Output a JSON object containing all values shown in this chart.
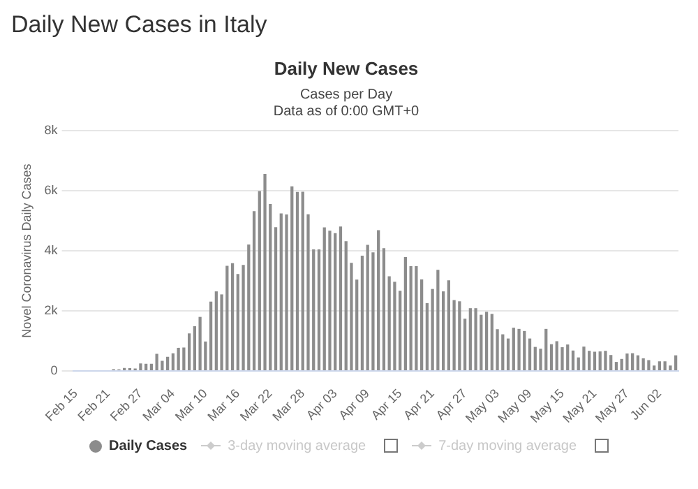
{
  "chart_data": {
    "type": "bar",
    "title": "Daily New Cases in Italy",
    "subtitle": "Daily New Cases",
    "ylabel": "Novel Coronavirus Daily Cases",
    "annotations": [
      "Cases per Day",
      "Data as of 0:00 GMT+0",
      "3-day moving average",
      "7-day moving average"
    ],
    "categories": [
      "Feb 15",
      null,
      null,
      null,
      null,
      null,
      "Feb 21",
      null,
      null,
      null,
      null,
      null,
      "Feb 27",
      null,
      null,
      null,
      null,
      null,
      "Mar 04",
      null,
      null,
      null,
      null,
      null,
      "Mar 10",
      null,
      null,
      null,
      null,
      null,
      "Mar 16",
      null,
      null,
      null,
      null,
      null,
      "Mar 22",
      null,
      null,
      null,
      null,
      null,
      "Mar 28",
      null,
      null,
      null,
      null,
      null,
      "Apr 03",
      null,
      null,
      null,
      null,
      null,
      "Apr 09",
      null,
      null,
      null,
      null,
      null,
      "Apr 15",
      null,
      null,
      null,
      null,
      null,
      "Apr 21",
      null,
      null,
      null,
      null,
      null,
      "Apr 27",
      null,
      null,
      null,
      null,
      null,
      "May 03",
      null,
      null,
      null,
      null,
      null,
      "May 09",
      null,
      null,
      null,
      null,
      null,
      "May 15",
      null,
      null,
      null,
      null,
      null,
      "May 21",
      null,
      null,
      null,
      null,
      null,
      "May 27",
      null,
      null,
      null,
      null,
      null,
      "Jun 02",
      null,
      null,
      null
    ],
    "series": [
      {
        "name": "Daily Cases",
        "color": "#8c8c8c",
        "values": [
          0,
          0,
          0,
          0,
          0,
          0,
          null,
          60,
          50,
          100,
          90,
          80,
          250,
          240,
          240,
          570,
          340,
          470,
          590,
          770,
          780,
          1250,
          1490,
          1800,
          980,
          2310,
          2650,
          2550,
          3500,
          3590,
          3230,
          3530,
          4210,
          5320,
          5990,
          6560,
          5560,
          4790,
          5250,
          5210,
          6150,
          5960,
          5970,
          5220,
          4050,
          4050,
          4780,
          4670,
          4590,
          4810,
          4320,
          3600,
          3040,
          3840,
          4200,
          3950,
          4690,
          4090,
          3150,
          2970,
          2670,
          3790,
          3490,
          3490,
          3050,
          2260,
          2730,
          3370,
          2650,
          3020,
          2360,
          2320,
          1740,
          2090,
          2090,
          1870,
          1970,
          1900,
          1390,
          1220,
          1080,
          1440,
          1400,
          1330,
          1080,
          800,
          740,
          1400,
          890,
          990,
          790,
          880,
          680,
          450,
          810,
          670,
          640,
          650,
          670,
          530,
          300,
          400,
          580,
          590,
          520,
          420,
          360,
          180,
          320,
          320,
          180,
          520
        ]
      }
    ],
    "ylim": [
      0,
      8000
    ],
    "yticks": [
      {
        "value": 0,
        "label": "0"
      },
      {
        "value": 2000,
        "label": "2k"
      },
      {
        "value": 4000,
        "label": "4k"
      },
      {
        "value": 6000,
        "label": "6k"
      },
      {
        "value": 8000,
        "label": "8k"
      }
    ],
    "grid": "y",
    "legend": "bottom"
  }
}
